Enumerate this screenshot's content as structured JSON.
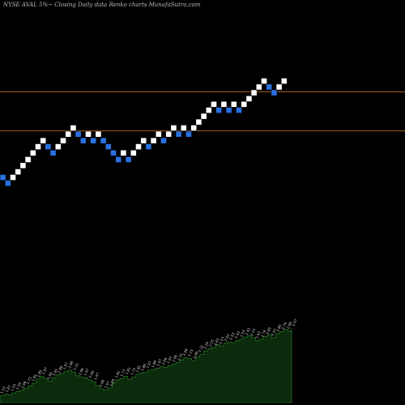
{
  "title": "NYSE AVAL  5%~  Closing Daily data  Renko  charts MunafaSutra.com",
  "chart_data": {
    "type": "renko",
    "box_size_label": "5%~",
    "price_levels": [
      2.76,
      2.11
    ],
    "colors": {
      "up_brick": "#ffffff",
      "down_brick": "#2a70e0",
      "brick_border": "#000000",
      "level_line": "#c8782a",
      "volume_area": "#0c2a0c",
      "volume_line": "#2e8a2e",
      "volume_label": "#dddddd"
    },
    "bricks": [
      {
        "close": 1.53,
        "dir": "down"
      },
      {
        "close": 1.47,
        "dir": "down"
      },
      {
        "close": 1.53,
        "dir": "up"
      },
      {
        "close": 1.59,
        "dir": "up"
      },
      {
        "close": 1.66,
        "dir": "up"
      },
      {
        "close": 1.73,
        "dir": "up"
      },
      {
        "close": 1.81,
        "dir": "up"
      },
      {
        "close": 1.89,
        "dir": "up"
      },
      {
        "close": 1.97,
        "dir": "up"
      },
      {
        "close": 1.89,
        "dir": "down"
      },
      {
        "close": 1.81,
        "dir": "down"
      },
      {
        "close": 1.89,
        "dir": "up"
      },
      {
        "close": 1.97,
        "dir": "up"
      },
      {
        "close": 2.06,
        "dir": "up"
      },
      {
        "close": 2.15,
        "dir": "up"
      },
      {
        "close": 2.06,
        "dir": "down"
      },
      {
        "close": 1.97,
        "dir": "down"
      },
      {
        "close": 2.06,
        "dir": "up"
      },
      {
        "close": 1.97,
        "dir": "down"
      },
      {
        "close": 2.06,
        "dir": "up"
      },
      {
        "close": 1.97,
        "dir": "down"
      },
      {
        "close": 1.89,
        "dir": "down"
      },
      {
        "close": 1.81,
        "dir": "down"
      },
      {
        "close": 1.73,
        "dir": "down"
      },
      {
        "close": 1.81,
        "dir": "up"
      },
      {
        "close": 1.73,
        "dir": "down"
      },
      {
        "close": 1.81,
        "dir": "up"
      },
      {
        "close": 1.89,
        "dir": "up"
      },
      {
        "close": 1.97,
        "dir": "up"
      },
      {
        "close": 1.89,
        "dir": "down"
      },
      {
        "close": 1.97,
        "dir": "up"
      },
      {
        "close": 2.06,
        "dir": "up"
      },
      {
        "close": 1.97,
        "dir": "down"
      },
      {
        "close": 2.06,
        "dir": "up"
      },
      {
        "close": 2.15,
        "dir": "up"
      },
      {
        "close": 2.06,
        "dir": "down"
      },
      {
        "close": 2.15,
        "dir": "up"
      },
      {
        "close": 2.06,
        "dir": "down"
      },
      {
        "close": 2.15,
        "dir": "up"
      },
      {
        "close": 2.24,
        "dir": "up"
      },
      {
        "close": 2.33,
        "dir": "up"
      },
      {
        "close": 2.43,
        "dir": "up"
      },
      {
        "close": 2.53,
        "dir": "up"
      },
      {
        "close": 2.43,
        "dir": "down"
      },
      {
        "close": 2.53,
        "dir": "up"
      },
      {
        "close": 2.43,
        "dir": "down"
      },
      {
        "close": 2.53,
        "dir": "up"
      },
      {
        "close": 2.43,
        "dir": "down"
      },
      {
        "close": 2.53,
        "dir": "up"
      },
      {
        "close": 2.63,
        "dir": "up"
      },
      {
        "close": 2.74,
        "dir": "up"
      },
      {
        "close": 2.85,
        "dir": "up"
      },
      {
        "close": 2.97,
        "dir": "up"
      },
      {
        "close": 2.85,
        "dir": "down"
      },
      {
        "close": 2.74,
        "dir": "down"
      },
      {
        "close": 2.85,
        "dir": "up"
      },
      {
        "close": 2.97,
        "dir": "up"
      }
    ],
    "volume_profile": [
      10,
      12,
      11,
      14,
      16,
      18,
      21,
      24,
      28,
      34,
      38,
      35,
      31,
      36,
      40,
      42,
      45,
      47,
      44,
      39,
      37,
      36,
      33,
      30,
      24,
      20,
      18,
      21,
      28,
      33,
      35,
      38,
      34,
      37,
      41,
      43,
      44,
      47,
      48,
      50,
      52,
      51,
      54,
      56,
      58,
      62,
      65,
      64,
      61,
      66,
      70,
      75,
      78,
      80,
      84,
      82,
      86,
      88,
      87,
      90,
      92,
      95,
      97,
      94,
      90,
      92,
      96,
      98,
      94,
      100,
      103,
      106,
      104,
      108
    ],
    "volume_labels": [
      "1.53",
      "1.47",
      "1.53",
      "1.59",
      "1.66",
      "1.73",
      "1.81",
      "1.89",
      "1.97",
      "1.89",
      "1.81",
      "1.89",
      "1.97",
      "2.06",
      "2.15",
      "2.06",
      "1.97",
      "2.06",
      "1.97",
      "2.06",
      "1.97",
      "1.89",
      "1.81",
      "1.73",
      "1.81",
      "1.73",
      "1.81",
      "1.89",
      "1.97",
      "1.89",
      "1.97",
      "2.06",
      "1.97",
      "2.06",
      "2.15",
      "2.06",
      "2.15",
      "2.06",
      "2.15",
      "2.24",
      "2.33",
      "2.43",
      "2.53",
      "2.43",
      "2.53",
      "2.43",
      "2.53",
      "2.43",
      "2.53",
      "2.63",
      "2.74",
      "2.85",
      "2.97",
      "2.85",
      "2.74",
      "2.85",
      "2.97"
    ]
  }
}
